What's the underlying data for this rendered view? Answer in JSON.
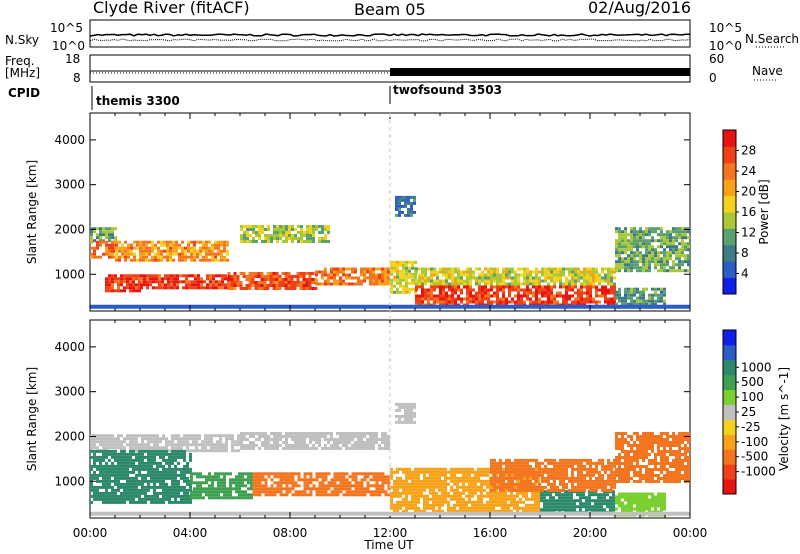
{
  "header": {
    "station": "Clyde River (fitACF)",
    "beam": "Beam 05",
    "date": "02/Aug/2016"
  },
  "panels": {
    "sky_label": "N.Sky",
    "sky_ticks": [
      "10^5",
      "10^0"
    ],
    "search_label": "N.Search",
    "search_ticks": [
      "10^5",
      "10^0"
    ],
    "freq_label_1": "Freq.",
    "freq_label_2": "[MHz]",
    "freq_ticks": [
      "18",
      "8"
    ],
    "nave_label": "Nave",
    "nave_ticks": [
      "60",
      "0"
    ],
    "cpid_label": "CPID",
    "cpid_segments": [
      {
        "name": "themis 3300",
        "start": "00:00"
      },
      {
        "name": "twofsound 3503",
        "start": "12:00"
      }
    ]
  },
  "chart_data": [
    {
      "type": "heatmap",
      "title": "Power",
      "xlabel": "Time UT",
      "ylabel": "Slant Range [km]",
      "xlim": [
        0,
        24
      ],
      "ylim": [
        180,
        4600
      ],
      "x_ticks": [
        "00:00",
        "04:00",
        "08:00",
        "12:00",
        "16:00",
        "20:00",
        "00:00"
      ],
      "y_ticks": [
        1000,
        2000,
        3000,
        4000
      ],
      "colorbar": {
        "label": "Power [dB]",
        "ticks": [
          4,
          8,
          12,
          16,
          20,
          24,
          28
        ],
        "range": [
          0,
          32
        ],
        "colors": [
          "#1020e8",
          "#2c5cc8",
          "#3f7a86",
          "#5aa070",
          "#a8c838",
          "#f2d21c",
          "#f8a21a",
          "#f47520",
          "#f04018",
          "#e81410"
        ]
      },
      "regions": [
        {
          "t0": 0.0,
          "t1": 1.0,
          "r0": 1750,
          "r1": 2050,
          "v": 12
        },
        {
          "t0": 0.0,
          "t1": 1.0,
          "r0": 1400,
          "r1": 1750,
          "v": 24
        },
        {
          "t0": 0.6,
          "t1": 2.0,
          "r0": 650,
          "r1": 1000,
          "v": 28
        },
        {
          "t0": 1.0,
          "t1": 5.5,
          "r0": 1300,
          "r1": 1750,
          "v": 22
        },
        {
          "t0": 2.0,
          "t1": 5.5,
          "r0": 700,
          "r1": 1000,
          "v": 28
        },
        {
          "t0": 5.5,
          "t1": 9.0,
          "r0": 700,
          "r1": 1050,
          "v": 26
        },
        {
          "t0": 6.0,
          "t1": 9.5,
          "r0": 1750,
          "r1": 2100,
          "v": 14
        },
        {
          "t0": 9.0,
          "t1": 12.0,
          "r0": 800,
          "r1": 1150,
          "v": 24
        },
        {
          "t0": 12.0,
          "t1": 13.0,
          "r0": 600,
          "r1": 1300,
          "v": 16
        },
        {
          "t0": 13.0,
          "t1": 21.0,
          "r0": 300,
          "r1": 750,
          "v": 28
        },
        {
          "t0": 13.0,
          "t1": 21.0,
          "r0": 750,
          "r1": 1150,
          "v": 16
        },
        {
          "t0": 12.2,
          "t1": 13.0,
          "r0": 2300,
          "r1": 2750,
          "v": 8
        },
        {
          "t0": 21.0,
          "t1": 24.0,
          "r0": 1100,
          "r1": 2050,
          "v": 12
        },
        {
          "t0": 21.0,
          "t1": 23.0,
          "r0": 250,
          "r1": 700,
          "v": 10
        }
      ]
    },
    {
      "type": "heatmap",
      "title": "Velocity",
      "xlabel": "Time UT",
      "ylabel": "Slant Range [km]",
      "xlim": [
        0,
        24
      ],
      "ylim": [
        180,
        4600
      ],
      "x_ticks": [
        "00:00",
        "04:00",
        "08:00",
        "12:00",
        "16:00",
        "20:00",
        "00:00"
      ],
      "y_ticks": [
        1000,
        2000,
        3000,
        4000
      ],
      "colorbar": {
        "label": "Velocity [m s^-1]",
        "ticks": [
          "1000",
          "500",
          "100",
          "25",
          "-25",
          "-100",
          "-500",
          "-1000"
        ],
        "colors": [
          "#e81410",
          "#f04018",
          "#f47520",
          "#f8a21a",
          "#f2d21c",
          "#c0c0c0",
          "#7ccf30",
          "#3ea050",
          "#2c8a6a",
          "#2c5cc8",
          "#1020e8"
        ]
      },
      "regions": [
        {
          "t0": 0.0,
          "t1": 6.0,
          "r0": 1700,
          "r1": 2050,
          "v": 0
        },
        {
          "t0": 0.0,
          "t1": 4.0,
          "r0": 500,
          "r1": 1700,
          "v": 200
        },
        {
          "t0": 4.0,
          "t1": 6.5,
          "r0": 650,
          "r1": 1200,
          "v": 60
        },
        {
          "t0": 6.0,
          "t1": 12.0,
          "r0": 1750,
          "r1": 2100,
          "v": 0
        },
        {
          "t0": 6.5,
          "t1": 12.0,
          "r0": 700,
          "r1": 1200,
          "v": -300
        },
        {
          "t0": 12.0,
          "t1": 18.0,
          "r0": 300,
          "r1": 1300,
          "v": -80
        },
        {
          "t0": 18.0,
          "t1": 21.0,
          "r0": 300,
          "r1": 800,
          "v": 150
        },
        {
          "t0": 16.0,
          "t1": 21.0,
          "r0": 800,
          "r1": 1500,
          "v": -400
        },
        {
          "t0": 12.2,
          "t1": 13.0,
          "r0": 2300,
          "r1": 2750,
          "v": 0
        },
        {
          "t0": 21.0,
          "t1": 24.0,
          "r0": 1000,
          "r1": 2100,
          "v": -400
        },
        {
          "t0": 21.0,
          "t1": 23.0,
          "r0": 250,
          "r1": 750,
          "v": 40
        }
      ]
    }
  ]
}
